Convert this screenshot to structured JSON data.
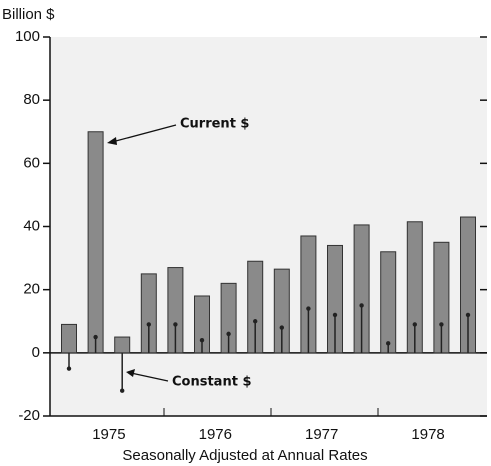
{
  "chart_data": {
    "type": "bar",
    "y_axis_label": "Billion $",
    "x_axis_label": "Seasonally Adjusted at Annual Rates",
    "categories": [
      "1975",
      null,
      null,
      null,
      "1976",
      null,
      null,
      null,
      "1977",
      null,
      null,
      null,
      "1978",
      null,
      null,
      null
    ],
    "series": [
      {
        "name": "Current $",
        "color": "#8a8a8a",
        "values": [
          9,
          70,
          5,
          25,
          27,
          18,
          22,
          29,
          26.5,
          37,
          34,
          40.5,
          32,
          41.5,
          35,
          43
        ]
      },
      {
        "name": "Constant $",
        "color": "#222222",
        "values": [
          -5,
          5,
          -12,
          9,
          9,
          4,
          6,
          10,
          8,
          14,
          12,
          15,
          3,
          9,
          9,
          12
        ]
      }
    ],
    "ylim": [
      -20,
      100
    ],
    "yticks": [
      -20,
      0,
      20,
      40,
      60,
      80,
      100
    ]
  }
}
